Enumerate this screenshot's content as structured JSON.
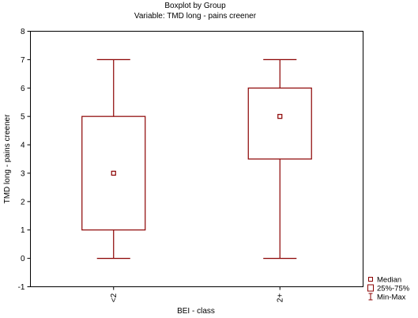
{
  "chart_data": {
    "type": "boxplot",
    "title": "Boxplot by Group",
    "subtitle": "Variable: TMD long - pains creener",
    "xlabel": "BEI - class",
    "ylabel": "TMD long - pains creener",
    "ylim": [
      -1,
      8
    ],
    "yticks": [
      -1,
      0,
      1,
      2,
      3,
      4,
      5,
      6,
      7,
      8
    ],
    "ytick_labels": [
      "-1",
      "0",
      "1",
      "2",
      "3",
      "4",
      "5",
      "6",
      "7",
      "8"
    ],
    "categories": [
      "<2",
      "2+"
    ],
    "boxes": [
      {
        "category": "<2",
        "min": 0,
        "q1": 1,
        "median": 3,
        "q3": 5,
        "max": 7
      },
      {
        "category": "2+",
        "min": 0,
        "q1": 3.5,
        "median": 5,
        "q3": 6,
        "max": 7
      }
    ],
    "legend": {
      "position": "bottom-right",
      "items": [
        {
          "label": "Median",
          "symbol": "square-marker"
        },
        {
          "label": "25%-75%",
          "symbol": "box"
        },
        {
          "label": "Min-Max",
          "symbol": "whisker"
        }
      ]
    },
    "grid": false,
    "color": "#8b0000"
  }
}
